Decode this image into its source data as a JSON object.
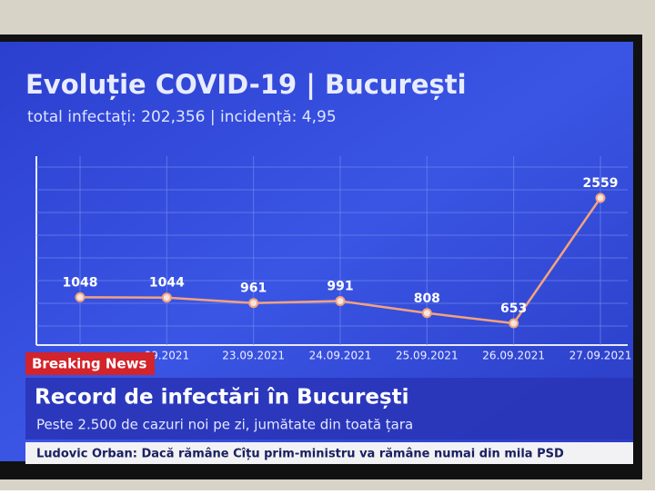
{
  "chart_data": {
    "type": "line",
    "title": "Evoluție COVID-19 | București",
    "subtitle": "total infectați: 202,356 | incidență: 4,95",
    "categories": [
      null,
      "09.2021",
      "23.09.2021",
      "24.09.2021",
      "25.09.2021",
      "26.09.2021",
      "27.09.2021"
    ],
    "values": [
      1048,
      1044,
      961,
      991,
      808,
      653,
      2559
    ],
    "color": "#f3a27e",
    "grid": true
  },
  "banner": {
    "label": "Breaking News",
    "headline": "Record de infectări în București",
    "subheadline": "Peste 2.500 de cazuri noi pe zi, jumătate din toată țara",
    "ticker": "Ludovic Orban: Dacă rămâne Cîțu prim-ministru va rămâne numai din mila PSD"
  }
}
